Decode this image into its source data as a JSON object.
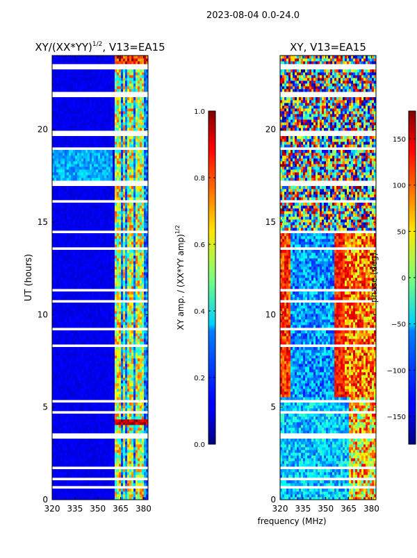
{
  "suptitle": "2023-08-04 0.0-24.0",
  "colors": {
    "axis": "#000000",
    "gap": "#ffffff"
  },
  "chart_data": [
    {
      "type": "heatmap",
      "title_main": "XY/(XX*YY)",
      "title_sup": "1/2",
      "title_tail": ", V13=EA15",
      "ylabel": "UT (hours)",
      "xlabel": "",
      "xlim": [
        320,
        383
      ],
      "ylim": [
        0,
        24
      ],
      "xticks": [
        320,
        335,
        350,
        365,
        380
      ],
      "yticks": [
        0,
        5,
        10,
        15,
        20
      ],
      "colorbar": {
        "label_main": "XY amp. / (XX*YY amp)",
        "label_sup": "1/2",
        "range": [
          0.0,
          1.0
        ],
        "ticks": [
          "0.0",
          "0.2",
          "0.4",
          "0.6",
          "0.8",
          "1.0"
        ]
      }
    },
    {
      "type": "heatmap",
      "title_main": "XY, V13=EA15",
      "ylabel": "",
      "xlabel": "frequency (MHz)",
      "xlim": [
        320,
        383
      ],
      "ylim": [
        0,
        24
      ],
      "xticks": [
        320,
        335,
        350,
        365,
        380
      ],
      "yticks": [
        0,
        5,
        10,
        15,
        20
      ],
      "colorbar": {
        "label_main": "phase (deg)",
        "range": [
          -180,
          180
        ],
        "ticks": [
          "−150",
          "−100",
          "−50",
          "0",
          "50",
          "100",
          "150"
        ]
      }
    }
  ]
}
